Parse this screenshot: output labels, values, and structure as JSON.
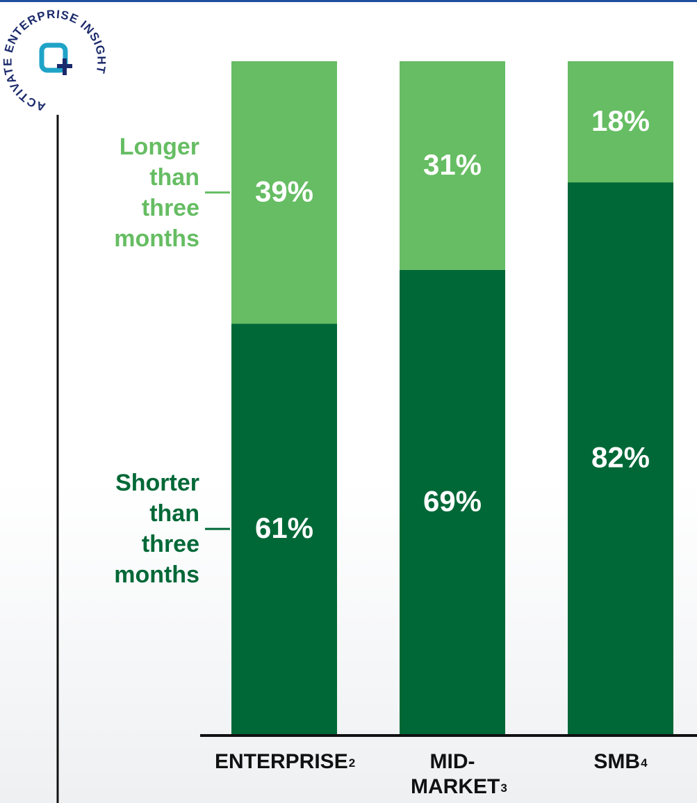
{
  "chart_data": {
    "type": "bar",
    "stacked": true,
    "logo_text": "ACTIVATE ENTERPRISE INSIGHT",
    "categories": [
      "ENTERPRISE",
      "MID-MARKET",
      "SMB"
    ],
    "footnotes": [
      "2",
      "3",
      "4"
    ],
    "series": [
      {
        "name": "Shorter than three months",
        "color": "#006837",
        "values": [
          61,
          69,
          82
        ],
        "value_labels": [
          "61%",
          "69%",
          "82%"
        ]
      },
      {
        "name": "Longer than three months",
        "color": "#66bd63",
        "values": [
          39,
          31,
          18
        ],
        "value_labels": [
          "39%",
          "31%",
          "18%"
        ]
      }
    ],
    "ylim": [
      0,
      100
    ]
  }
}
